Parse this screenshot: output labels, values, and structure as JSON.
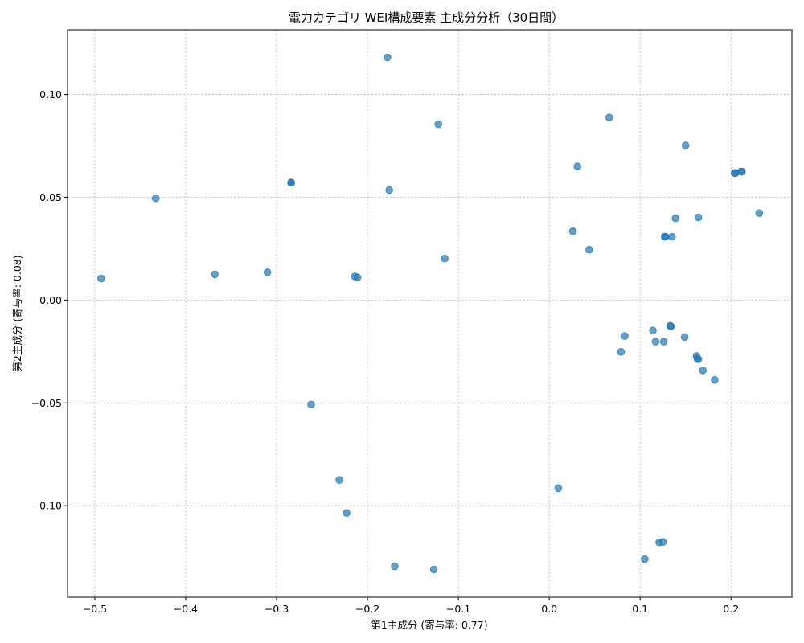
{
  "chart_data": {
    "type": "scatter",
    "title": "電力カテゴリ WEI構成要素 主成分分析（30日間）",
    "xlabel": "第1主成分 (寄与率: 0.77)",
    "ylabel": "第2主成分 (寄与率: 0.08)",
    "xlim": [
      -0.53,
      0.267
    ],
    "ylim": [
      -0.1445,
      0.1315
    ],
    "xticks": [
      -0.5,
      -0.4,
      -0.3,
      -0.2,
      -0.1,
      0.0,
      0.1,
      0.2
    ],
    "xtick_labels": [
      "−0.5",
      "−0.4",
      "−0.3",
      "−0.2",
      "−0.1",
      "0.0",
      "0.1",
      "0.2"
    ],
    "yticks": [
      -0.1,
      -0.05,
      0.0,
      0.05,
      0.1
    ],
    "ytick_labels": [
      "−0.10",
      "−0.05",
      "0.00",
      "0.05",
      "0.10"
    ],
    "grid": true,
    "color": "#1f77b4",
    "points": [
      {
        "x": -0.493,
        "y": 0.0105
      },
      {
        "x": -0.433,
        "y": 0.0495
      },
      {
        "x": -0.368,
        "y": 0.0125
      },
      {
        "x": -0.31,
        "y": 0.0135
      },
      {
        "x": -0.284,
        "y": 0.0572
      },
      {
        "x": -0.284,
        "y": 0.057
      },
      {
        "x": -0.262,
        "y": -0.0508
      },
      {
        "x": -0.231,
        "y": -0.0875
      },
      {
        "x": -0.223,
        "y": -0.1035
      },
      {
        "x": -0.214,
        "y": 0.0115
      },
      {
        "x": -0.211,
        "y": 0.011
      },
      {
        "x": -0.178,
        "y": 0.118
      },
      {
        "x": -0.176,
        "y": 0.0535
      },
      {
        "x": -0.17,
        "y": -0.1295
      },
      {
        "x": -0.127,
        "y": -0.131
      },
      {
        "x": -0.122,
        "y": 0.0855
      },
      {
        "x": -0.115,
        "y": 0.0202
      },
      {
        "x": 0.01,
        "y": -0.0915
      },
      {
        "x": 0.026,
        "y": 0.0335
      },
      {
        "x": 0.031,
        "y": 0.065
      },
      {
        "x": 0.044,
        "y": 0.0245
      },
      {
        "x": 0.066,
        "y": 0.0888
      },
      {
        "x": 0.079,
        "y": -0.0252
      },
      {
        "x": 0.083,
        "y": -0.0175
      },
      {
        "x": 0.105,
        "y": -0.126
      },
      {
        "x": 0.114,
        "y": -0.0148
      },
      {
        "x": 0.117,
        "y": -0.0202
      },
      {
        "x": 0.121,
        "y": -0.1178
      },
      {
        "x": 0.125,
        "y": -0.1176
      },
      {
        "x": 0.126,
        "y": -0.0202
      },
      {
        "x": 0.127,
        "y": 0.0308
      },
      {
        "x": 0.128,
        "y": 0.0308
      },
      {
        "x": 0.133,
        "y": -0.0125
      },
      {
        "x": 0.134,
        "y": -0.0128
      },
      {
        "x": 0.135,
        "y": 0.0308
      },
      {
        "x": 0.139,
        "y": 0.0398
      },
      {
        "x": 0.149,
        "y": -0.018
      },
      {
        "x": 0.15,
        "y": 0.0752
      },
      {
        "x": 0.162,
        "y": -0.0272
      },
      {
        "x": 0.163,
        "y": -0.0285
      },
      {
        "x": 0.164,
        "y": -0.0288
      },
      {
        "x": 0.164,
        "y": 0.0402
      },
      {
        "x": 0.169,
        "y": -0.0342
      },
      {
        "x": 0.182,
        "y": -0.0388
      },
      {
        "x": 0.204,
        "y": 0.0618
      },
      {
        "x": 0.205,
        "y": 0.0618
      },
      {
        "x": 0.211,
        "y": 0.0625
      },
      {
        "x": 0.212,
        "y": 0.0625
      },
      {
        "x": 0.231,
        "y": 0.0423
      }
    ]
  }
}
